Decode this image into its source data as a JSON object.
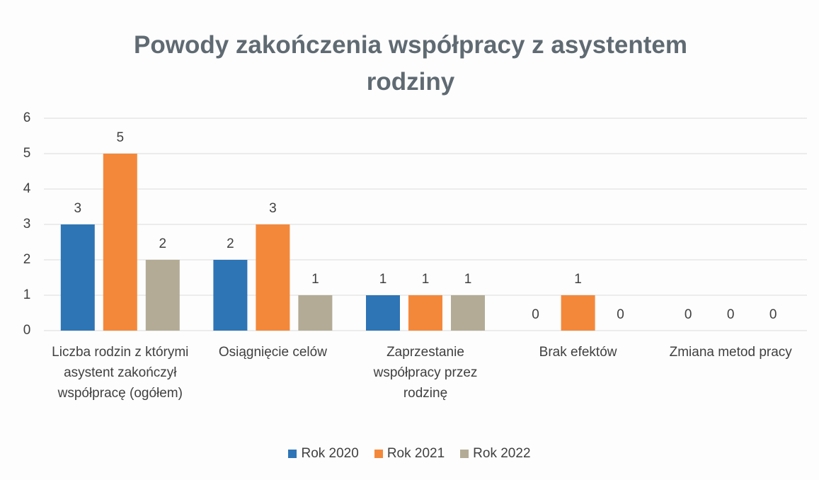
{
  "chart_data": {
    "type": "bar",
    "title": "Powody zakończenia współpracy z asystentem rodziny",
    "categories": [
      "Liczba rodzin z którymi asystent zakończył współpracę (ogółem)",
      "Osiągnięcie celów",
      "Zaprzestanie współpracy przez rodzinę",
      "Brak efektów",
      "Zmiana metod pracy"
    ],
    "series": [
      {
        "name": "Rok 2020",
        "color": "#2e75b6",
        "values": [
          3,
          2,
          1,
          0,
          0
        ]
      },
      {
        "name": "Rok 2021",
        "color": "#f4883a",
        "values": [
          5,
          3,
          1,
          1,
          0
        ]
      },
      {
        "name": "Rok 2022",
        "color": "#b3ab95",
        "values": [
          2,
          1,
          1,
          0,
          0
        ]
      }
    ],
    "ylim": [
      0,
      6
    ],
    "yticks": [
      0,
      1,
      2,
      3,
      4,
      5,
      6
    ],
    "grid": true,
    "legend": "bottom"
  }
}
